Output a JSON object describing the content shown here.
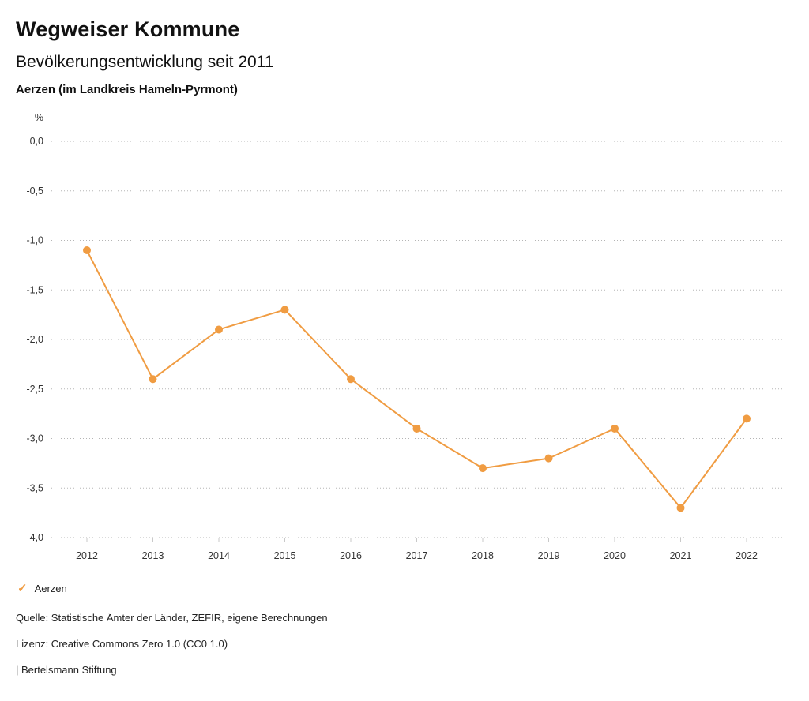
{
  "header": {
    "title": "Wegweiser Kommune",
    "subtitle": "Bevölkerungsentwicklung seit 2011",
    "region": "Aerzen (im Landkreis Hameln-Pyrmont)"
  },
  "chart_data": {
    "type": "line",
    "title": "Bevölkerungsentwicklung seit 2011",
    "unit_label": "%",
    "categories": [
      "2012",
      "2013",
      "2014",
      "2015",
      "2016",
      "2017",
      "2018",
      "2019",
      "2020",
      "2021",
      "2022"
    ],
    "series": [
      {
        "name": "Aerzen",
        "values": [
          -1.1,
          -2.4,
          -1.9,
          -1.7,
          -2.4,
          -2.9,
          -3.3,
          -3.2,
          -2.9,
          -3.7,
          -2.8
        ],
        "color": "#f09c42"
      }
    ],
    "ylim": [
      -4.0,
      0.0
    ],
    "ytick_step": 0.5,
    "ytick_labels": [
      "0,0",
      "-0,5",
      "-1,0",
      "-1,5",
      "-2,0",
      "-2,5",
      "-3,0",
      "-3,5",
      "-4,0"
    ],
    "grid": "dotted-horizontal",
    "legend_position": "bottom-left"
  },
  "legend": {
    "items": [
      {
        "label": "Aerzen",
        "color": "#f09c42",
        "check_icon": "✓"
      }
    ]
  },
  "footer": {
    "source": "Quelle: Statistische Ämter der Länder, ZEFIR, eigene Berechnungen",
    "license": "Lizenz: Creative Commons Zero 1.0 (CC0 1.0)",
    "attribution": "| Bertelsmann Stiftung"
  },
  "colors": {
    "series": "#f09c42",
    "grid": "#b5b5b5",
    "text": "#222222"
  }
}
